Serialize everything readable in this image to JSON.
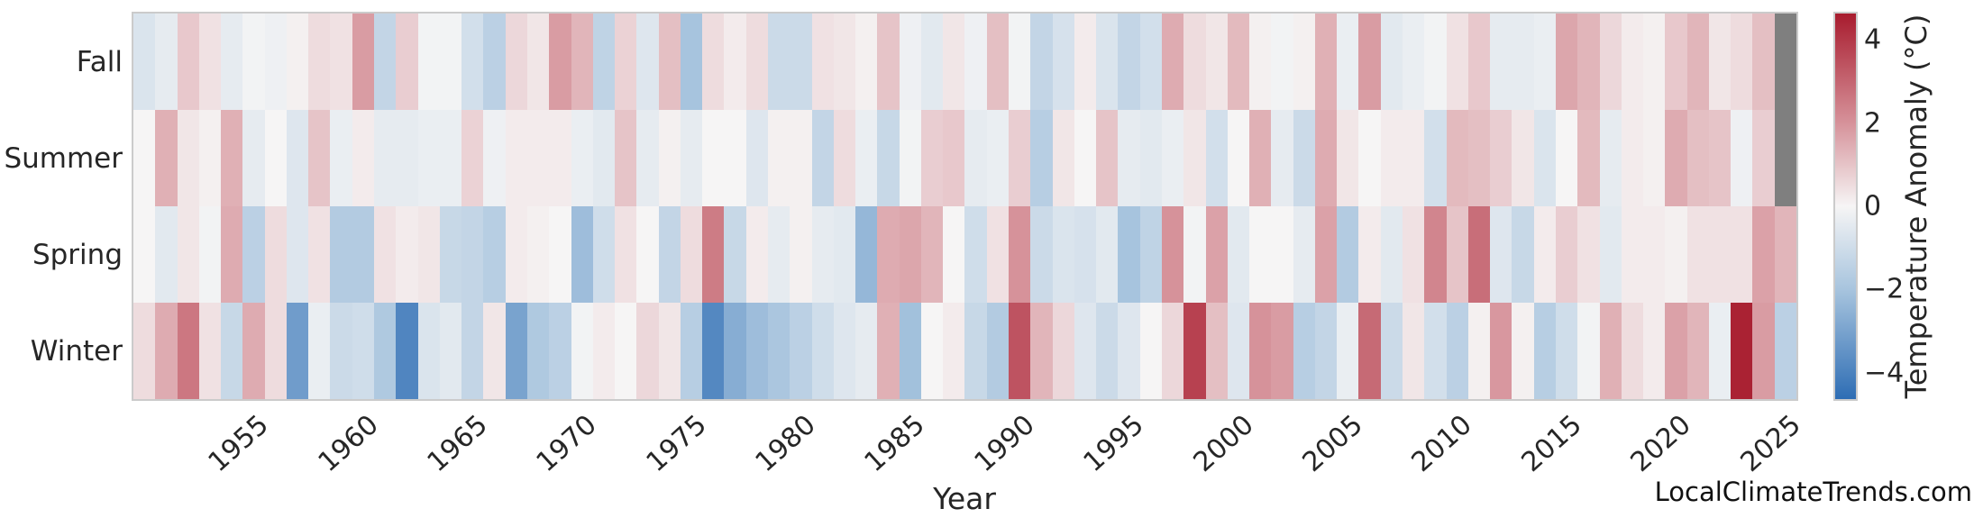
{
  "page": {
    "watermark": "LocalClimateTrends.com"
  },
  "chart_data": {
    "type": "heatmap",
    "title": "",
    "xlabel": "Year",
    "ylabel": "",
    "rows": [
      "Fall",
      "Summer",
      "Spring",
      "Winter"
    ],
    "year_start": 1950,
    "year_end": 2025,
    "x_ticks": [
      "1955",
      "1960",
      "1965",
      "1970",
      "1975",
      "1980",
      "1985",
      "1990",
      "1995",
      "2000",
      "2005",
      "2010",
      "2015",
      "2020",
      "2025"
    ],
    "colorbar": {
      "label": "Temperature Anomaly (°C)",
      "ticks": [
        {
          "value": 4,
          "label": "4"
        },
        {
          "value": 2,
          "label": "2"
        },
        {
          "value": 0,
          "label": "0"
        },
        {
          "value": -2,
          "label": "−2"
        },
        {
          "value": -4,
          "label": "−4"
        }
      ],
      "vmin": -4.63,
      "vmax": 4.63
    },
    "colors": {
      "missing": "#7f7f7f",
      "stops": [
        [
          -4.63,
          "#2e6db4"
        ],
        [
          -2.0,
          "#a7c4de"
        ],
        [
          0.0,
          "#f6f5f5"
        ],
        [
          2.0,
          "#d6929a"
        ],
        [
          4.63,
          "#a81c2e"
        ]
      ]
    },
    "series": [
      {
        "name": "Fall",
        "values": [
          -0.7,
          -0.4,
          0.9,
          0.4,
          -0.4,
          -0.1,
          -0.2,
          0.1,
          0.5,
          0.4,
          1.8,
          -1.3,
          0.8,
          -0.1,
          -0.1,
          -0.9,
          -1.5,
          0.6,
          0.3,
          1.8,
          1.3,
          -1.4,
          0.7,
          -0.6,
          1.1,
          -2.0,
          0.5,
          0.2,
          0.5,
          -1.1,
          -1.1,
          0.4,
          0.3,
          0.1,
          1.0,
          -0.2,
          -0.5,
          0.3,
          -0.2,
          1.1,
          -0.1,
          -1.3,
          -0.8,
          0.2,
          -0.7,
          -1.3,
          -0.9,
          1.5,
          0.5,
          0.3,
          1.2,
          0.1,
          -0.1,
          0.1,
          1.4,
          -0.3,
          1.8,
          -0.5,
          -0.3,
          -0.1,
          0.4,
          0.9,
          -0.4,
          -0.4,
          -0.3,
          1.6,
          1.3,
          0.6,
          0.2,
          0.1,
          0.9,
          1.3,
          0.3,
          0.5,
          1.1,
          null
        ]
      },
      {
        "name": "Summer",
        "values": [
          0.0,
          1.4,
          0.3,
          0.1,
          1.4,
          -0.4,
          0.0,
          -0.6,
          1.0,
          -0.3,
          0.2,
          -0.4,
          -0.4,
          -0.3,
          -0.3,
          0.7,
          -0.2,
          0.2,
          0.2,
          0.2,
          -0.3,
          -0.5,
          1.0,
          -0.4,
          0.1,
          -0.4,
          0.0,
          0.0,
          -0.6,
          0.1,
          0.1,
          -1.3,
          0.5,
          -0.3,
          -1.2,
          -0.1,
          0.8,
          0.9,
          -0.4,
          -0.3,
          0.8,
          -1.6,
          0.3,
          0.0,
          1.0,
          -0.4,
          -0.5,
          -0.3,
          0.3,
          -0.9,
          0.0,
          1.4,
          -0.4,
          -1.1,
          1.5,
          0.3,
          0.0,
          0.2,
          0.2,
          -0.9,
          1.2,
          1.1,
          0.8,
          0.3,
          -0.7,
          0.0,
          1.2,
          -0.4,
          0.2,
          0.1,
          1.5,
          1.1,
          1.0,
          -0.2,
          0.8,
          null
        ]
      },
      {
        "name": "Spring",
        "values": [
          0.0,
          -0.5,
          0.3,
          -0.1,
          1.5,
          -1.5,
          0.5,
          -0.6,
          0.4,
          -1.7,
          -1.7,
          0.4,
          0.2,
          0.3,
          -1.2,
          -1.3,
          -1.6,
          0.2,
          0.1,
          0.0,
          -2.2,
          -1.0,
          0.4,
          0.0,
          -1.3,
          0.5,
          2.5,
          -1.2,
          0.2,
          -0.4,
          0.1,
          -0.4,
          -0.5,
          -2.4,
          1.5,
          1.6,
          1.3,
          0.0,
          -1.0,
          0.4,
          2.0,
          -1.1,
          -0.7,
          -0.8,
          -0.5,
          -2.0,
          -1.4,
          2.0,
          -0.1,
          1.7,
          -0.5,
          0.0,
          0.0,
          -0.4,
          1.7,
          -1.7,
          0.2,
          -0.5,
          0.4,
          2.3,
          1.0,
          2.8,
          -0.6,
          -1.2,
          0.2,
          0.8,
          0.4,
          -0.5,
          0.2,
          0.2,
          0.1,
          0.4,
          0.4,
          0.4,
          1.7,
          1.3
        ]
      },
      {
        "name": "Winter",
        "values": [
          0.5,
          1.5,
          2.6,
          0.4,
          -1.2,
          1.5,
          0.5,
          -3.2,
          -0.3,
          -1.1,
          -1.0,
          -1.8,
          -3.9,
          -0.7,
          -0.5,
          -1.3,
          0.3,
          -3.0,
          -1.8,
          -1.5,
          -0.1,
          0.2,
          0.0,
          0.6,
          0.3,
          -1.6,
          -3.8,
          -2.7,
          -2.2,
          -1.9,
          -1.5,
          -1.0,
          -0.6,
          -0.4,
          1.4,
          -2.1,
          0.0,
          0.2,
          -1.2,
          -1.7,
          3.4,
          1.3,
          0.6,
          -0.6,
          -1.1,
          -0.6,
          0.0,
          0.6,
          3.8,
          1.1,
          -0.6,
          2.0,
          1.8,
          -1.6,
          -1.3,
          -0.3,
          2.9,
          -1.1,
          0.3,
          -0.9,
          -1.5,
          0.1,
          1.9,
          0.1,
          -1.6,
          -1.0,
          -0.1,
          1.4,
          0.5,
          0.2,
          1.7,
          1.3,
          -0.3,
          4.5,
          1.8,
          -1.5
        ]
      }
    ]
  }
}
